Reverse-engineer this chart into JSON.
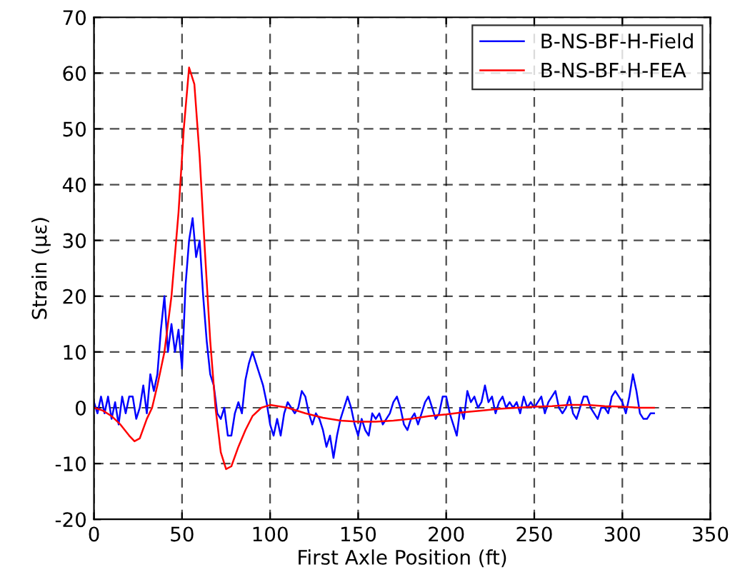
{
  "chart_data": {
    "type": "line",
    "xlabel": "First Axle Position (ft)",
    "ylabel": "Strain (με)",
    "xlim": [
      0,
      350
    ],
    "ylim": [
      -20,
      70
    ],
    "xticks": [
      0,
      50,
      100,
      150,
      200,
      250,
      300,
      350
    ],
    "yticks": [
      -20,
      -10,
      0,
      10,
      20,
      30,
      40,
      50,
      60,
      70
    ],
    "grid": true,
    "legend": "top right",
    "marker": "none",
    "line_style": "solid",
    "series": [
      {
        "name": "B-NS-BF-H-Field",
        "color": "#0000ff",
        "x": [
          0,
          2,
          4,
          6,
          8,
          10,
          12,
          14,
          16,
          18,
          20,
          22,
          24,
          26,
          28,
          30,
          32,
          34,
          36,
          38,
          40,
          42,
          44,
          46,
          48,
          50,
          52,
          54,
          56,
          58,
          60,
          62,
          64,
          66,
          68,
          70,
          72,
          74,
          76,
          78,
          80,
          82,
          84,
          86,
          88,
          90,
          92,
          94,
          96,
          98,
          100,
          102,
          104,
          106,
          108,
          110,
          112,
          114,
          116,
          118,
          120,
          122,
          124,
          126,
          128,
          130,
          132,
          134,
          136,
          138,
          140,
          142,
          144,
          146,
          148,
          150,
          152,
          154,
          156,
          158,
          160,
          162,
          164,
          166,
          168,
          170,
          172,
          174,
          176,
          178,
          180,
          182,
          184,
          186,
          188,
          190,
          192,
          194,
          196,
          198,
          200,
          202,
          204,
          206,
          208,
          210,
          212,
          214,
          216,
          218,
          220,
          222,
          224,
          226,
          228,
          230,
          232,
          234,
          236,
          238,
          240,
          242,
          244,
          246,
          248,
          250,
          252,
          254,
          256,
          258,
          260,
          262,
          264,
          266,
          268,
          270,
          272,
          274,
          276,
          278,
          280,
          282,
          284,
          286,
          288,
          290,
          292,
          294,
          296,
          298,
          300,
          302,
          304,
          306,
          308,
          310,
          312,
          314,
          316,
          318
        ],
        "values": [
          1,
          -1,
          2,
          -1,
          2,
          -2,
          1,
          -3,
          2,
          -1,
          2,
          2,
          -2,
          0,
          4,
          -1,
          6,
          3,
          6,
          14,
          20,
          10,
          15,
          10,
          14,
          7,
          22,
          30,
          34,
          27,
          30,
          20,
          12,
          6,
          4,
          -1,
          -2,
          0,
          -5,
          -5,
          -1,
          1,
          -1,
          5,
          8,
          10,
          8,
          6,
          4,
          1,
          -3,
          -5,
          -2,
          -5,
          -1,
          1,
          0,
          -1,
          0,
          3,
          2,
          -1,
          -3,
          -1,
          -2,
          -4,
          -7,
          -5,
          -9,
          -5,
          -2,
          0,
          2,
          0,
          -3,
          -5,
          -2,
          -4,
          -5,
          -1,
          -2,
          -1,
          -3,
          -2,
          -1,
          1,
          2,
          0,
          -3,
          -4,
          -2,
          -1,
          -3,
          -1,
          1,
          2,
          0,
          -2,
          -1,
          2,
          2,
          -1,
          -3,
          -5,
          0,
          -2,
          3,
          1,
          2,
          0,
          1,
          4,
          1,
          2,
          -1,
          1,
          2,
          0,
          1,
          0,
          1,
          -1,
          2,
          0,
          1,
          0,
          1,
          2,
          -1,
          1,
          2,
          3,
          0,
          -1,
          0,
          2,
          -1,
          -2,
          0,
          2,
          2,
          0,
          -1,
          -2,
          0,
          0,
          -1,
          2,
          3,
          2,
          1,
          -1,
          2,
          6,
          3,
          -1,
          -2,
          -2,
          -1,
          -1
        ]
      },
      {
        "name": "B-NS-BF-H-FEA",
        "color": "#ff0000",
        "x": [
          0,
          5,
          10,
          15,
          20,
          23,
          26,
          30,
          33,
          36,
          40,
          44,
          48,
          51,
          54,
          57,
          60,
          63,
          66,
          69,
          72,
          75,
          78,
          82,
          86,
          90,
          95,
          100,
          110,
          120,
          130,
          140,
          150,
          160,
          170,
          180,
          190,
          200,
          210,
          220,
          230,
          240,
          250,
          260,
          270,
          280,
          290,
          300,
          310,
          318
        ],
        "values": [
          0,
          -0.5,
          -1.5,
          -3,
          -5,
          -6,
          -5.5,
          -2,
          0,
          4,
          10,
          20,
          35,
          50,
          61,
          58,
          45,
          28,
          12,
          0,
          -8,
          -11,
          -10.5,
          -7,
          -4,
          -1.5,
          0,
          0.5,
          0,
          -1,
          -1.8,
          -2.3,
          -2.5,
          -2.5,
          -2.3,
          -2,
          -1.5,
          -1.2,
          -0.8,
          -0.5,
          -0.2,
          0,
          0.2,
          0.3,
          0.5,
          0.5,
          0.3,
          0.2,
          0,
          0
        ]
      }
    ]
  }
}
